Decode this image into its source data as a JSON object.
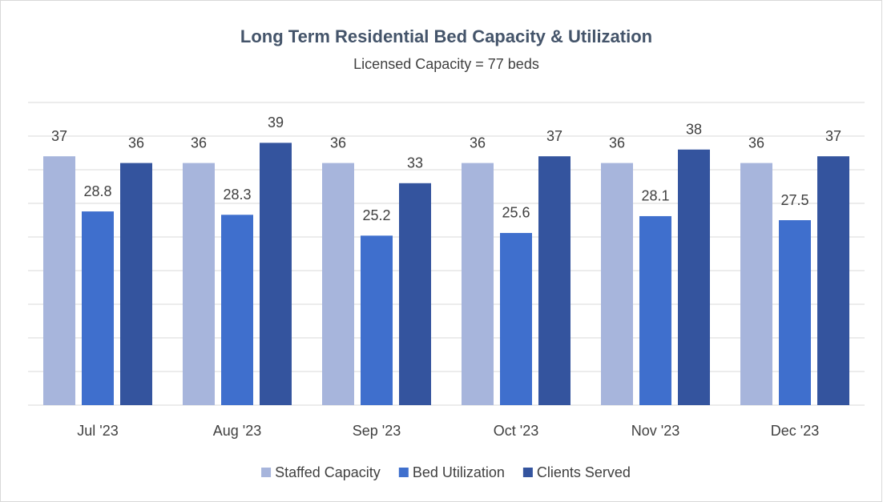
{
  "chart_data": {
    "type": "bar",
    "title": "Long Term Residential Bed Capacity & Utilization",
    "subtitle": "Licensed Capacity = 77 beds",
    "categories": [
      "Jul '23",
      "Aug '23",
      "Sep '23",
      "Oct '23",
      "Nov '23",
      "Dec '23"
    ],
    "series": [
      {
        "name": "Staffed Capacity",
        "color": "#a7b5dc",
        "values": [
          37,
          36,
          36,
          36,
          36,
          36
        ]
      },
      {
        "name": "Bed Utilization",
        "color": "#3f6fcd",
        "values": [
          28.8,
          28.3,
          25.2,
          25.6,
          28.1,
          27.5
        ]
      },
      {
        "name": "Clients Served",
        "color": "#34549e",
        "values": [
          36,
          39,
          33,
          37,
          38,
          37
        ]
      }
    ],
    "ylim": [
      0,
      45
    ],
    "yticks": [
      0,
      5,
      10,
      15,
      20,
      25,
      30,
      35,
      40,
      45
    ],
    "grid": true,
    "legend": "bottom"
  }
}
